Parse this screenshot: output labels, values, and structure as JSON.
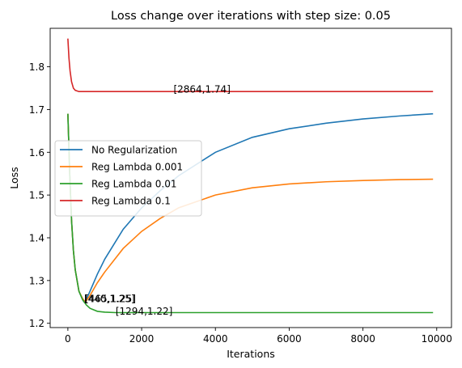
{
  "chart_data": {
    "type": "line",
    "title": "Loss change over iterations with step size: 0.05",
    "xlabel": "Iterations",
    "ylabel": "Loss",
    "xlim": [
      -480,
      10400
    ],
    "ylim": [
      1.19,
      1.89
    ],
    "xticks": [
      {
        "value": 0,
        "label": "0"
      },
      {
        "value": 2000,
        "label": "2000"
      },
      {
        "value": 4000,
        "label": "4000"
      },
      {
        "value": 6000,
        "label": "6000"
      },
      {
        "value": 8000,
        "label": "8000"
      },
      {
        "value": 10000,
        "label": "10000"
      }
    ],
    "yticks": [
      {
        "value": 1.2,
        "label": "1.2"
      },
      {
        "value": 1.3,
        "label": "1.3"
      },
      {
        "value": 1.4,
        "label": "1.4"
      },
      {
        "value": 1.5,
        "label": "1.5"
      },
      {
        "value": 1.6,
        "label": "1.6"
      },
      {
        "value": 1.7,
        "label": "1.7"
      },
      {
        "value": 1.8,
        "label": "1.8"
      }
    ],
    "grid": false,
    "legend": "center-left",
    "series": [
      {
        "name": "No Regularization",
        "color": "#1f77b4",
        "x": [
          0,
          50,
          100,
          150,
          200,
          300,
          400,
          440,
          500,
          600,
          800,
          1000,
          1500,
          2000,
          2500,
          3000,
          4000,
          5000,
          6000,
          7000,
          8000,
          9000,
          9900
        ],
        "y": [
          1.69,
          1.55,
          1.44,
          1.37,
          1.325,
          1.275,
          1.255,
          1.25,
          1.256,
          1.275,
          1.315,
          1.35,
          1.42,
          1.47,
          1.51,
          1.545,
          1.6,
          1.635,
          1.655,
          1.668,
          1.678,
          1.685,
          1.69
        ]
      },
      {
        "name": "Reg Lambda 0.001",
        "color": "#ff7f0e",
        "x": [
          0,
          50,
          100,
          150,
          200,
          300,
          400,
          465,
          500,
          600,
          800,
          1000,
          1500,
          2000,
          2500,
          3000,
          4000,
          5000,
          6000,
          7000,
          8000,
          9000,
          9900
        ],
        "y": [
          1.69,
          1.55,
          1.44,
          1.37,
          1.325,
          1.275,
          1.258,
          1.25,
          1.253,
          1.265,
          1.295,
          1.32,
          1.375,
          1.415,
          1.445,
          1.47,
          1.5,
          1.517,
          1.526,
          1.531,
          1.534,
          1.536,
          1.537
        ]
      },
      {
        "name": "Reg Lambda 0.01",
        "color": "#2ca02c",
        "x": [
          0,
          50,
          100,
          150,
          200,
          300,
          400,
          500,
          600,
          800,
          1000,
          1294,
          2000,
          4000,
          6000,
          8000,
          9900
        ],
        "y": [
          1.69,
          1.55,
          1.44,
          1.37,
          1.325,
          1.275,
          1.255,
          1.243,
          1.235,
          1.228,
          1.226,
          1.225,
          1.225,
          1.225,
          1.225,
          1.225,
          1.225
        ]
      },
      {
        "name": "Reg Lambda 0.1",
        "color": "#d62728",
        "x": [
          0,
          30,
          60,
          100,
          150,
          200,
          300,
          400,
          600,
          1000,
          2864,
          5000,
          8000,
          9900
        ],
        "y": [
          1.866,
          1.82,
          1.79,
          1.765,
          1.75,
          1.745,
          1.742,
          1.742,
          1.742,
          1.742,
          1.742,
          1.742,
          1.742,
          1.742
        ]
      }
    ],
    "annotations": [
      {
        "text": "[2864,1.74]",
        "x": 2864,
        "y": 1.74
      },
      {
        "text": "[440,1.25]",
        "x": 440,
        "y": 1.25
      },
      {
        "text": "[465,1.25]",
        "x": 465,
        "y": 1.25
      },
      {
        "text": "[1294,1.22]",
        "x": 1294,
        "y": 1.22
      }
    ]
  }
}
